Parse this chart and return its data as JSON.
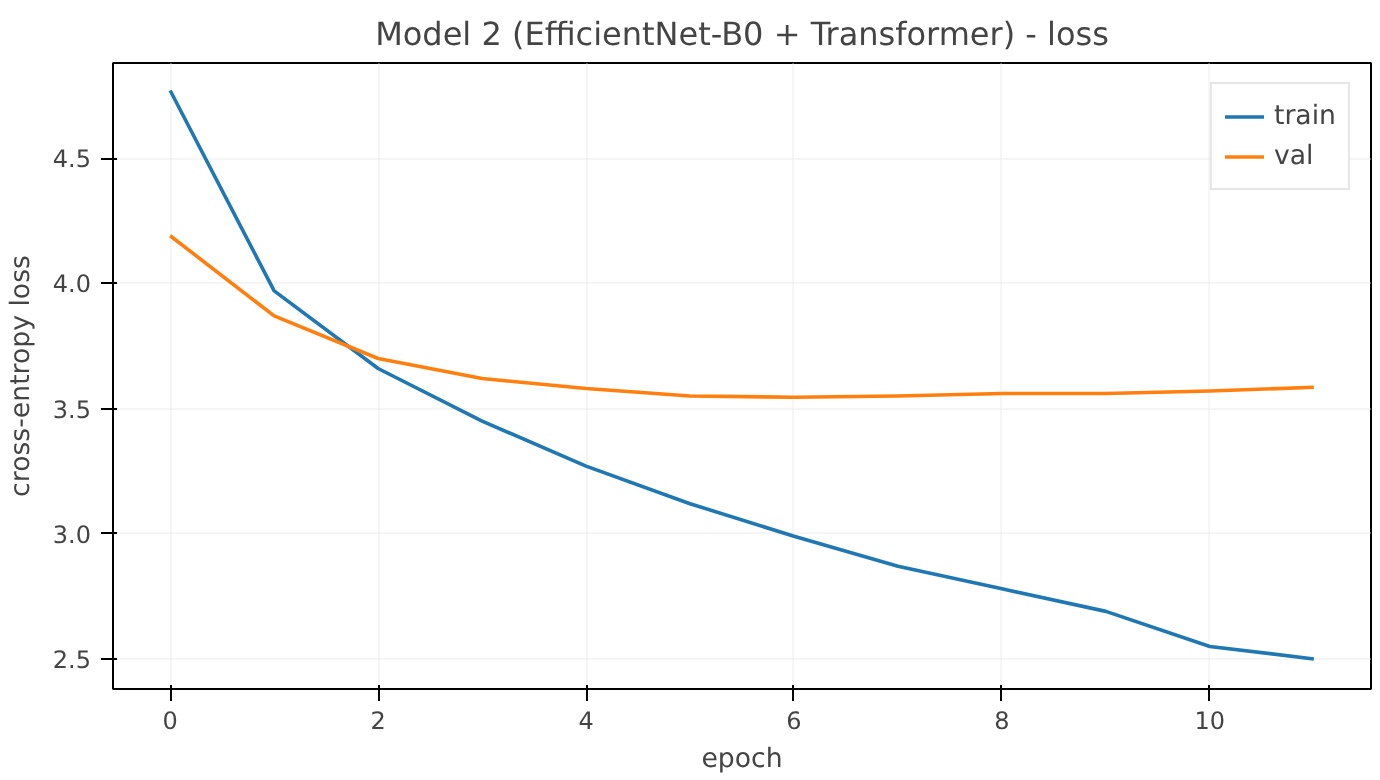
{
  "chart_data": {
    "type": "line",
    "title": "Model 2 (EfficientNet-B0 + Transformer) - loss",
    "xlabel": "epoch",
    "ylabel": "cross-entropy loss",
    "x": [
      0,
      1,
      2,
      3,
      4,
      5,
      6,
      7,
      8,
      9,
      10,
      11
    ],
    "series": [
      {
        "name": "train",
        "color": "#1f77b4",
        "values": [
          4.77,
          3.97,
          3.66,
          3.45,
          3.27,
          3.12,
          2.99,
          2.87,
          2.78,
          2.69,
          2.55,
          2.5
        ]
      },
      {
        "name": "val",
        "color": "#ff7f0e",
        "values": [
          4.19,
          3.87,
          3.7,
          3.62,
          3.58,
          3.55,
          3.545,
          3.55,
          3.56,
          3.56,
          3.57,
          3.585
        ]
      }
    ],
    "xlim": [
      -0.55,
      11.55
    ],
    "ylim": [
      2.38,
      4.88
    ],
    "xticks": [
      0,
      2,
      4,
      6,
      8,
      10
    ],
    "yticks": [
      2.5,
      {
        "value": 3,
        "label": "3.0"
      },
      3.5,
      {
        "value": 4,
        "label": "4.0"
      },
      4.5
    ],
    "grid": true,
    "legend": "top right",
    "marker": "none",
    "line_style": "solid"
  }
}
